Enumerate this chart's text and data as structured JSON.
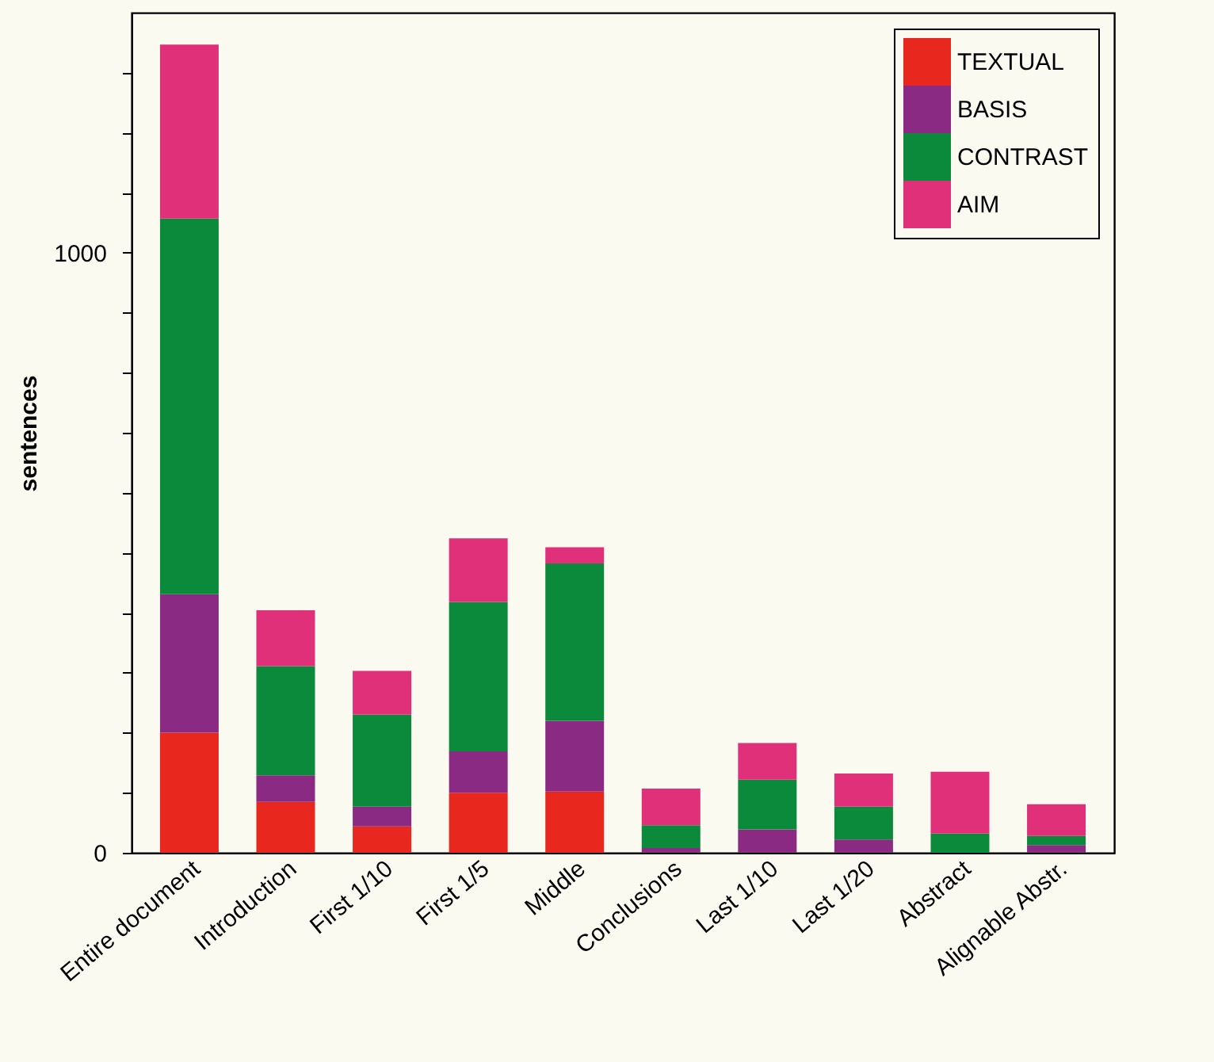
{
  "chart_data": {
    "type": "bar",
    "stacked": true,
    "ylabel": "sentences",
    "categories": [
      "Entire document",
      "Introduction",
      "First 1/10",
      "First 1/5",
      "Middle",
      "Conclusions",
      "Last 1/10",
      "Last 1/20",
      "Abstract",
      "Alignable Abstr."
    ],
    "series": [
      {
        "name": "TEXTUAL",
        "color": "#e8281e",
        "values": [
          200,
          85,
          44,
          100,
          102,
          0,
          0,
          0,
          0,
          0
        ]
      },
      {
        "name": "BASIS",
        "color": "#8a2a82",
        "values": [
          231,
          44,
          33,
          69,
          118,
          8,
          39,
          22,
          0,
          13
        ]
      },
      {
        "name": "CONTRAST",
        "color": "#0a8a3a",
        "values": [
          626,
          182,
          153,
          249,
          262,
          38,
          83,
          55,
          32,
          15
        ]
      },
      {
        "name": "AIM",
        "color": "#e0307a",
        "values": [
          290,
          93,
          73,
          106,
          27,
          61,
          61,
          55,
          103,
          53
        ]
      }
    ],
    "ylim": [
      0,
      1400
    ],
    "yticks": [
      0,
      {
        "value": 100,
        "label": null
      },
      {
        "value": 200,
        "label": null
      },
      {
        "value": 300,
        "label": null
      },
      {
        "value": 400,
        "label": null
      },
      {
        "value": 500,
        "label": null
      },
      {
        "value": 600,
        "label": null
      },
      {
        "value": 700,
        "label": null
      },
      {
        "value": 800,
        "label": null
      },
      {
        "value": 900,
        "label": null
      },
      1000,
      {
        "value": 1100,
        "label": null
      },
      {
        "value": 1200,
        "label": null
      },
      {
        "value": 1300,
        "label": null
      }
    ],
    "grid": false,
    "legend": "top right"
  }
}
